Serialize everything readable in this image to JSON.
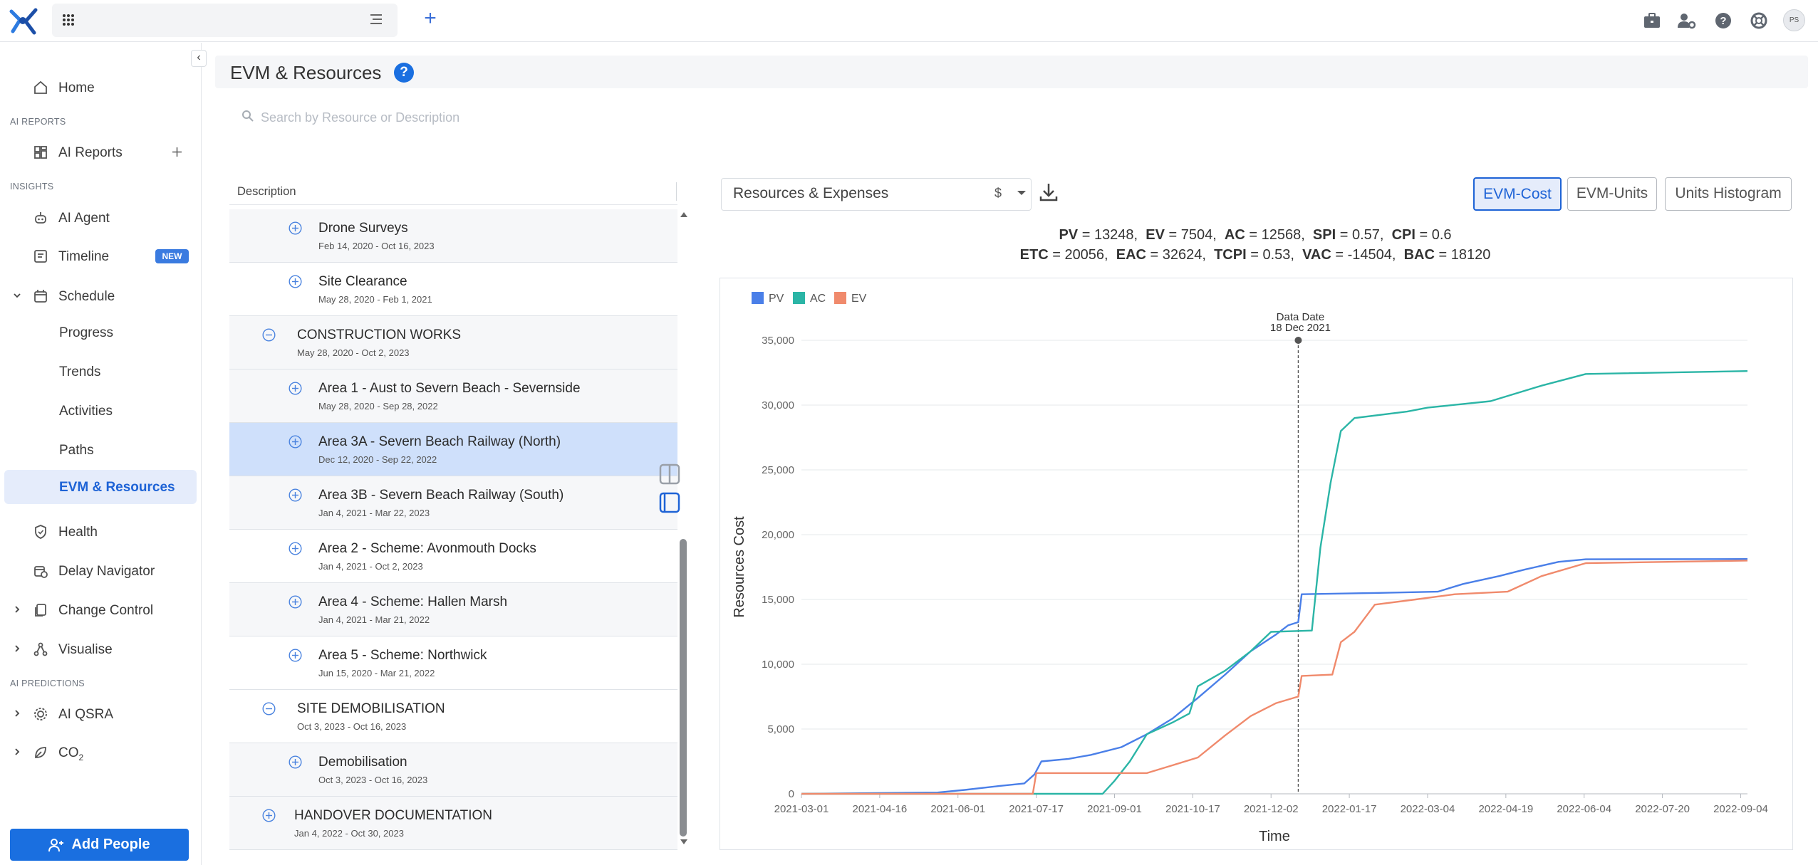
{
  "header": {
    "add_tab": "+"
  },
  "user": {
    "initials": "PS"
  },
  "sidebar": {
    "home": "Home",
    "sec_ai_reports": "AI REPORTS",
    "ai_reports": "AI Reports",
    "sec_insights": "INSIGHTS",
    "ai_agent": "AI Agent",
    "timeline": "Timeline",
    "timeline_badge": "NEW",
    "schedule": "Schedule",
    "progress": "Progress",
    "trends": "Trends",
    "activities": "Activities",
    "paths": "Paths",
    "evm": "EVM & Resources",
    "health": "Health",
    "delay_navigator": "Delay Navigator",
    "change_control": "Change Control",
    "visualise": "Visualise",
    "sec_ai_predictions": "AI PREDICTIONS",
    "ai_qsra": "AI QSRA",
    "co2": "CO",
    "co2_sub": "2",
    "add_people": "Add People"
  },
  "page": {
    "title": "EVM & Resources",
    "help": "?",
    "search_placeholder": "Search by Resource or Description"
  },
  "table": {
    "column": "Description",
    "rows": [
      {
        "name": "Drone Surveys",
        "dates": "Feb 14, 2020 - Oct 16, 2023"
      },
      {
        "name": "Site Clearance",
        "dates": "May 28, 2020 - Feb 1, 2021"
      },
      {
        "name": "CONSTRUCTION WORKS",
        "dates": "May 28, 2020 - Oct 2, 2023"
      },
      {
        "name": "Area 1 - Aust to Severn Beach - Severnside",
        "dates": "May 28, 2020 - Sep 28, 2022"
      },
      {
        "name": "Area 3A - Severn Beach Railway (North)",
        "dates": "Dec 12, 2020 - Sep 22, 2022"
      },
      {
        "name": "Area 3B - Severn Beach Railway (South)",
        "dates": "Jan 4, 2021 - Mar 22, 2023"
      },
      {
        "name": "Area 2 - Scheme: Avonmouth Docks",
        "dates": "Jan 4, 2021 - Oct 2, 2023"
      },
      {
        "name": "Area 4 - Scheme: Hallen Marsh",
        "dates": "Jan 4, 2021 - Mar 21, 2022"
      },
      {
        "name": "Area 5 - Scheme: Northwick",
        "dates": "Jun 15, 2020 - Mar 21, 2022"
      },
      {
        "name": "SITE DEMOBILISATION",
        "dates": "Oct 3, 2023 - Oct 16, 2023"
      },
      {
        "name": "Demobilisation",
        "dates": "Oct 3, 2023 - Oct 16, 2023"
      },
      {
        "name": "HANDOVER DOCUMENTATION",
        "dates": "Jan 4, 2022 - Oct 30, 2023"
      }
    ]
  },
  "panel": {
    "resource_select": "Resources & Expenses",
    "currency": "$",
    "tabs": {
      "evm_cost": "EVM-Cost",
      "evm_units": "EVM-Units",
      "units_histogram": "Units Histogram"
    }
  },
  "metrics": {
    "pv_k": "PV",
    "pv": "= 13248,",
    "ev_k": "EV",
    "ev": "= 7504,",
    "ac_k": "AC",
    "ac": "= 12568,",
    "spi_k": "SPI",
    "spi": "= 0.57,",
    "cpi_k": "CPI",
    "cpi": "= 0.6",
    "etc_k": "ETC",
    "etc": "= 20056,",
    "eac_k": "EAC",
    "eac": "= 32624,",
    "tcpi_k": "TCPI",
    "tcpi": "= 0.53,",
    "vac_k": "VAC",
    "vac": "= -14504,",
    "bac_k": "BAC",
    "bac": "= 18120"
  },
  "chart_data": {
    "type": "line",
    "xlabel": "Time",
    "ylabel": "Resources Cost",
    "ylim": [
      0,
      35000
    ],
    "yticks": [
      0,
      5000,
      10000,
      15000,
      20000,
      25000,
      30000,
      35000
    ],
    "ytick_labels": [
      "0",
      "5,000",
      "10,000",
      "15,000",
      "20,000",
      "25,000",
      "30,000",
      "35,000"
    ],
    "x_ticks": [
      "2021-03-01",
      "2021-04-16",
      "2021-06-01",
      "2021-07-17",
      "2021-09-01",
      "2021-10-17",
      "2021-12-02",
      "2022-01-17",
      "2022-03-04",
      "2022-04-19",
      "2022-06-04",
      "2022-07-20",
      "2022-09-04"
    ],
    "x_range": [
      "2021-03-01",
      "2022-09-08"
    ],
    "legend": "top-left",
    "grid": true,
    "data_date": {
      "label": "Data Date",
      "value": "18 Dec 2021",
      "date": "2021-12-18"
    },
    "series": [
      {
        "name": "PV",
        "color": "#4a7fe8",
        "points": [
          [
            "2021-03-01",
            0
          ],
          [
            "2021-05-20",
            100
          ],
          [
            "2021-06-05",
            300
          ],
          [
            "2021-06-25",
            600
          ],
          [
            "2021-07-10",
            800
          ],
          [
            "2021-07-16",
            1500
          ],
          [
            "2021-07-20",
            2500
          ],
          [
            "2021-08-05",
            2700
          ],
          [
            "2021-08-18",
            3000
          ],
          [
            "2021-09-05",
            3600
          ],
          [
            "2021-09-20",
            4600
          ],
          [
            "2021-10-05",
            5800
          ],
          [
            "2021-10-20",
            7400
          ],
          [
            "2021-11-05",
            9200
          ],
          [
            "2021-11-20",
            11000
          ],
          [
            "2021-12-05",
            12300
          ],
          [
            "2021-12-12",
            13000
          ],
          [
            "2021-12-18",
            13248
          ],
          [
            "2021-12-20",
            15400
          ],
          [
            "2022-02-01",
            15500
          ],
          [
            "2022-03-10",
            15600
          ],
          [
            "2022-03-25",
            16200
          ],
          [
            "2022-04-15",
            16800
          ],
          [
            "2022-04-30",
            17300
          ],
          [
            "2022-05-20",
            17900
          ],
          [
            "2022-06-05",
            18100
          ],
          [
            "2022-09-08",
            18120
          ]
        ]
      },
      {
        "name": "AC",
        "color": "#2bb5a6",
        "points": [
          [
            "2021-03-01",
            0
          ],
          [
            "2021-07-16",
            0
          ],
          [
            "2021-08-25",
            0
          ],
          [
            "2021-09-01",
            1000
          ],
          [
            "2021-09-10",
            2500
          ],
          [
            "2021-09-20",
            4600
          ],
          [
            "2021-10-05",
            5500
          ],
          [
            "2021-10-15",
            6200
          ],
          [
            "2021-10-20",
            8300
          ],
          [
            "2021-11-05",
            9500
          ],
          [
            "2021-11-20",
            11000
          ],
          [
            "2021-12-02",
            12500
          ],
          [
            "2021-12-18",
            12568
          ],
          [
            "2021-12-26",
            12600
          ],
          [
            "2021-12-31",
            19000
          ],
          [
            "2022-01-06",
            24000
          ],
          [
            "2022-01-12",
            28000
          ],
          [
            "2022-01-20",
            29000
          ],
          [
            "2022-02-20",
            29500
          ],
          [
            "2022-03-04",
            29800
          ],
          [
            "2022-04-10",
            30300
          ],
          [
            "2022-05-10",
            31500
          ],
          [
            "2022-06-05",
            32400
          ],
          [
            "2022-09-08",
            32624
          ]
        ]
      },
      {
        "name": "EV",
        "color": "#f08a6c",
        "points": [
          [
            "2021-03-01",
            0
          ],
          [
            "2021-07-15",
            0
          ],
          [
            "2021-07-17",
            1600
          ],
          [
            "2021-09-20",
            1600
          ],
          [
            "2021-10-05",
            2200
          ],
          [
            "2021-10-20",
            2800
          ],
          [
            "2021-11-05",
            4500
          ],
          [
            "2021-11-20",
            6000
          ],
          [
            "2021-12-05",
            7000
          ],
          [
            "2021-12-18",
            7504
          ],
          [
            "2021-12-20",
            9100
          ],
          [
            "2022-01-07",
            9200
          ],
          [
            "2022-01-12",
            11700
          ],
          [
            "2022-01-20",
            12500
          ],
          [
            "2022-02-01",
            14600
          ],
          [
            "2022-02-25",
            15000
          ],
          [
            "2022-03-20",
            15400
          ],
          [
            "2022-04-20",
            15600
          ],
          [
            "2022-05-10",
            16800
          ],
          [
            "2022-06-05",
            17800
          ],
          [
            "2022-09-08",
            18000
          ]
        ]
      }
    ]
  }
}
